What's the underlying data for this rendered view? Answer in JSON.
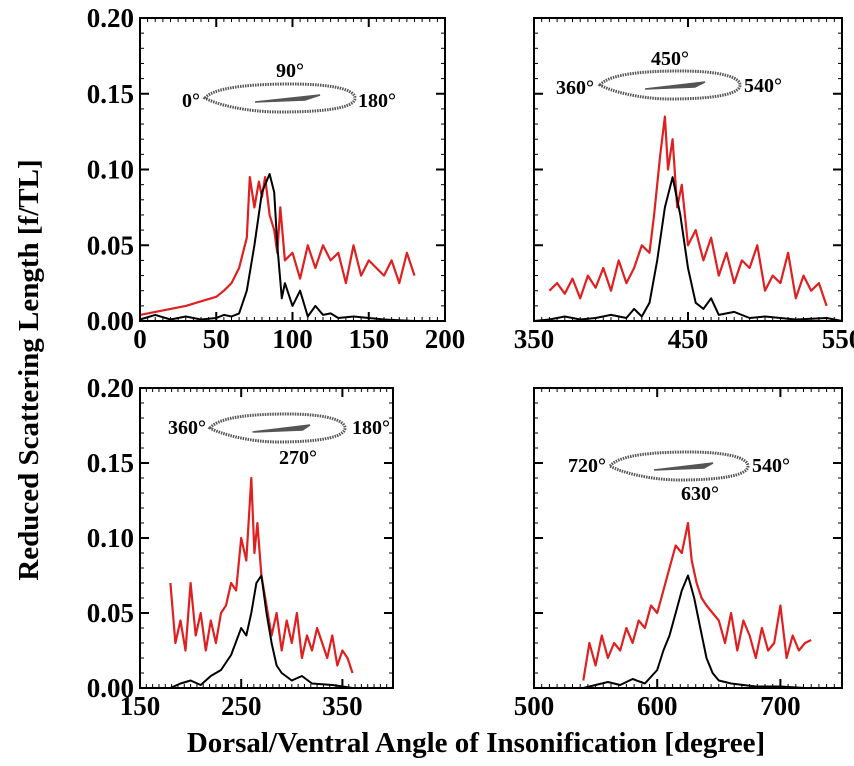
{
  "figure": {
    "ylabel": "Reduced Scattering Length [f/TL]",
    "xlabel": "Dorsal/Ventral Angle of Insonification [degree]"
  },
  "colors": {
    "measured": "#e02020",
    "model": "#000000",
    "inset": "#555555"
  },
  "chart_data": [
    {
      "type": "line",
      "panel": "top-left",
      "xlim": [
        0,
        200
      ],
      "ylim": [
        0,
        0.2
      ],
      "xticks": [
        "0",
        "50",
        "100",
        "150",
        "200"
      ],
      "yticks": [
        "0.00",
        "0.05",
        "0.10",
        "0.15",
        "0.20"
      ],
      "inset_labels": [
        "0°",
        "90°",
        "180°"
      ],
      "series": [
        {
          "color": "measured",
          "x": [
            0,
            10,
            20,
            30,
            40,
            50,
            55,
            60,
            65,
            70,
            72,
            75,
            78,
            80,
            82,
            85,
            88,
            90,
            92,
            95,
            100,
            105,
            110,
            115,
            120,
            125,
            130,
            135,
            140,
            145,
            150,
            155,
            160,
            165,
            170,
            175,
            180
          ],
          "y": [
            0.004,
            0.006,
            0.008,
            0.01,
            0.013,
            0.016,
            0.02,
            0.025,
            0.035,
            0.055,
            0.095,
            0.075,
            0.092,
            0.082,
            0.095,
            0.07,
            0.06,
            0.045,
            0.075,
            0.04,
            0.045,
            0.028,
            0.05,
            0.035,
            0.05,
            0.04,
            0.045,
            0.025,
            0.05,
            0.03,
            0.04,
            0.035,
            0.03,
            0.04,
            0.025,
            0.045,
            0.03
          ]
        },
        {
          "color": "model",
          "x": [
            0,
            10,
            20,
            30,
            40,
            50,
            55,
            60,
            65,
            70,
            75,
            80,
            85,
            88,
            90,
            93,
            95,
            100,
            105,
            110,
            115,
            120,
            125,
            130,
            140,
            150,
            160,
            180
          ],
          "y": [
            0.001,
            0.004,
            0.001,
            0.003,
            0.001,
            0.002,
            0.004,
            0.003,
            0.005,
            0.02,
            0.05,
            0.085,
            0.097,
            0.085,
            0.05,
            0.015,
            0.025,
            0.01,
            0.02,
            0.003,
            0.01,
            0.004,
            0.005,
            0.002,
            0.003,
            0.002,
            0.001,
            0
          ]
        }
      ]
    },
    {
      "type": "line",
      "panel": "top-right",
      "xlim": [
        350,
        550
      ],
      "ylim": [
        0,
        0.2
      ],
      "xticks": [
        "350",
        "450",
        "550"
      ],
      "yticks": [],
      "inset_labels": [
        "360°",
        "450°",
        "540°"
      ],
      "series": [
        {
          "color": "measured",
          "x": [
            360,
            365,
            370,
            375,
            380,
            385,
            390,
            395,
            400,
            405,
            410,
            415,
            420,
            425,
            428,
            432,
            435,
            437,
            440,
            443,
            446,
            450,
            455,
            460,
            465,
            470,
            475,
            480,
            485,
            490,
            495,
            500,
            505,
            510,
            515,
            520,
            525,
            530,
            535,
            540
          ],
          "y": [
            0.02,
            0.025,
            0.018,
            0.028,
            0.015,
            0.03,
            0.022,
            0.035,
            0.02,
            0.04,
            0.025,
            0.035,
            0.05,
            0.045,
            0.07,
            0.11,
            0.135,
            0.1,
            0.12,
            0.075,
            0.09,
            0.05,
            0.06,
            0.04,
            0.055,
            0.03,
            0.045,
            0.025,
            0.04,
            0.035,
            0.05,
            0.02,
            0.03,
            0.025,
            0.045,
            0.015,
            0.03,
            0.02,
            0.025,
            0.01
          ]
        },
        {
          "color": "model",
          "x": [
            350,
            360,
            370,
            380,
            390,
            400,
            410,
            415,
            420,
            425,
            430,
            435,
            440,
            445,
            450,
            455,
            460,
            465,
            470,
            480,
            490,
            500,
            520,
            540,
            550
          ],
          "y": [
            0,
            0.001,
            0.003,
            0.001,
            0.002,
            0.004,
            0.002,
            0.008,
            0.003,
            0.012,
            0.04,
            0.075,
            0.095,
            0.07,
            0.035,
            0.012,
            0.008,
            0.015,
            0.004,
            0.006,
            0.002,
            0.003,
            0.001,
            0.002,
            0
          ]
        }
      ]
    },
    {
      "type": "line",
      "panel": "bottom-left",
      "xlim": [
        150,
        400
      ],
      "ylim": [
        0,
        0.2
      ],
      "xticks": [
        "150",
        "250",
        "350"
      ],
      "yticks": [
        "0.00",
        "0.05",
        "0.10",
        "0.15",
        "0.20"
      ],
      "inset_labels": [
        "360°",
        "270°",
        "180°"
      ],
      "series": [
        {
          "color": "measured",
          "x": [
            180,
            185,
            190,
            195,
            200,
            205,
            210,
            215,
            220,
            225,
            230,
            235,
            240,
            245,
            250,
            255,
            260,
            263,
            266,
            270,
            275,
            280,
            285,
            290,
            295,
            300,
            305,
            310,
            315,
            320,
            325,
            330,
            335,
            340,
            345,
            350,
            355,
            360
          ],
          "y": [
            0.07,
            0.03,
            0.045,
            0.025,
            0.07,
            0.035,
            0.05,
            0.025,
            0.045,
            0.03,
            0.05,
            0.055,
            0.07,
            0.065,
            0.1,
            0.085,
            0.14,
            0.09,
            0.11,
            0.075,
            0.055,
            0.035,
            0.05,
            0.025,
            0.045,
            0.03,
            0.05,
            0.02,
            0.035,
            0.025,
            0.04,
            0.03,
            0.02,
            0.035,
            0.015,
            0.025,
            0.02,
            0.01
          ]
        },
        {
          "color": "model",
          "x": [
            180,
            190,
            200,
            210,
            220,
            230,
            240,
            250,
            255,
            260,
            265,
            270,
            275,
            280,
            285,
            290,
            300,
            310,
            320,
            340,
            360
          ],
          "y": [
            0,
            0.003,
            0.005,
            0.002,
            0.008,
            0.012,
            0.022,
            0.04,
            0.035,
            0.05,
            0.07,
            0.075,
            0.05,
            0.03,
            0.015,
            0.01,
            0.005,
            0.008,
            0.003,
            0.002,
            0
          ]
        }
      ]
    },
    {
      "type": "line",
      "panel": "bottom-right",
      "xlim": [
        500,
        750
      ],
      "ylim": [
        0,
        0.2
      ],
      "xticks": [
        "500",
        "600",
        "700"
      ],
      "yticks": [],
      "inset_labels": [
        "720°",
        "630°",
        "540°"
      ],
      "series": [
        {
          "color": "measured",
          "x": [
            540,
            545,
            550,
            555,
            560,
            565,
            570,
            575,
            580,
            585,
            590,
            595,
            600,
            605,
            610,
            615,
            620,
            625,
            628,
            632,
            636,
            640,
            645,
            650,
            655,
            660,
            665,
            670,
            675,
            680,
            685,
            690,
            695,
            700,
            705,
            710,
            715,
            720,
            725
          ],
          "y": [
            0.005,
            0.03,
            0.015,
            0.035,
            0.02,
            0.03,
            0.025,
            0.04,
            0.03,
            0.045,
            0.04,
            0.055,
            0.05,
            0.065,
            0.08,
            0.095,
            0.09,
            0.11,
            0.085,
            0.07,
            0.06,
            0.055,
            0.05,
            0.045,
            0.03,
            0.05,
            0.025,
            0.045,
            0.035,
            0.02,
            0.04,
            0.025,
            0.03,
            0.055,
            0.02,
            0.035,
            0.025,
            0.03,
            0.032
          ]
        },
        {
          "color": "model",
          "x": [
            540,
            550,
            560,
            570,
            580,
            590,
            600,
            605,
            610,
            615,
            620,
            625,
            630,
            635,
            640,
            645,
            650,
            660,
            670,
            680,
            700,
            720
          ],
          "y": [
            0,
            0.002,
            0.004,
            0.002,
            0.006,
            0.003,
            0.012,
            0.025,
            0.035,
            0.05,
            0.065,
            0.075,
            0.06,
            0.04,
            0.02,
            0.01,
            0.005,
            0.003,
            0.002,
            0.001,
            0.001,
            0
          ]
        }
      ]
    }
  ]
}
